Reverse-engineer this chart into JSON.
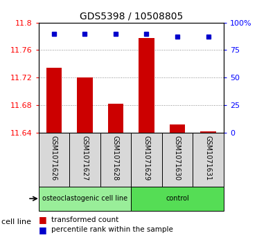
{
  "title": "GDS5398 / 10508805",
  "samples": [
    "GSM1071626",
    "GSM1071627",
    "GSM1071628",
    "GSM1071629",
    "GSM1071630",
    "GSM1071631"
  ],
  "transformed_counts": [
    11.734,
    11.72,
    11.682,
    11.778,
    11.652,
    11.642
  ],
  "percentile_ranks": [
    90,
    90,
    90,
    90,
    87,
    87
  ],
  "ylim": [
    11.64,
    11.8
  ],
  "yticks": [
    11.64,
    11.68,
    11.72,
    11.76,
    11.8
  ],
  "ytick_labels": [
    "11.64",
    "11.68",
    "11.72",
    "11.76",
    "11.8"
  ],
  "right_yticks": [
    0,
    25,
    50,
    75,
    100
  ],
  "right_ytick_labels": [
    "0",
    "25",
    "50",
    "75",
    "100%"
  ],
  "bar_color": "#cc0000",
  "dot_color": "#0000cc",
  "cell_line_groups": [
    {
      "label": "osteoclastogenic cell line",
      "start": 0,
      "end": 3,
      "color": "#99ee99"
    },
    {
      "label": "control",
      "start": 3,
      "end": 6,
      "color": "#55dd55"
    }
  ],
  "cell_line_label": "cell line",
  "legend_items": [
    {
      "color": "#cc0000",
      "label": "transformed count"
    },
    {
      "color": "#0000cc",
      "label": "percentile rank within the sample"
    }
  ],
  "grid_color": "#888888",
  "bg_color": "#d8d8d8",
  "plot_bg": "#ffffff",
  "bar_width": 0.5,
  "bar_bottom": 11.64
}
